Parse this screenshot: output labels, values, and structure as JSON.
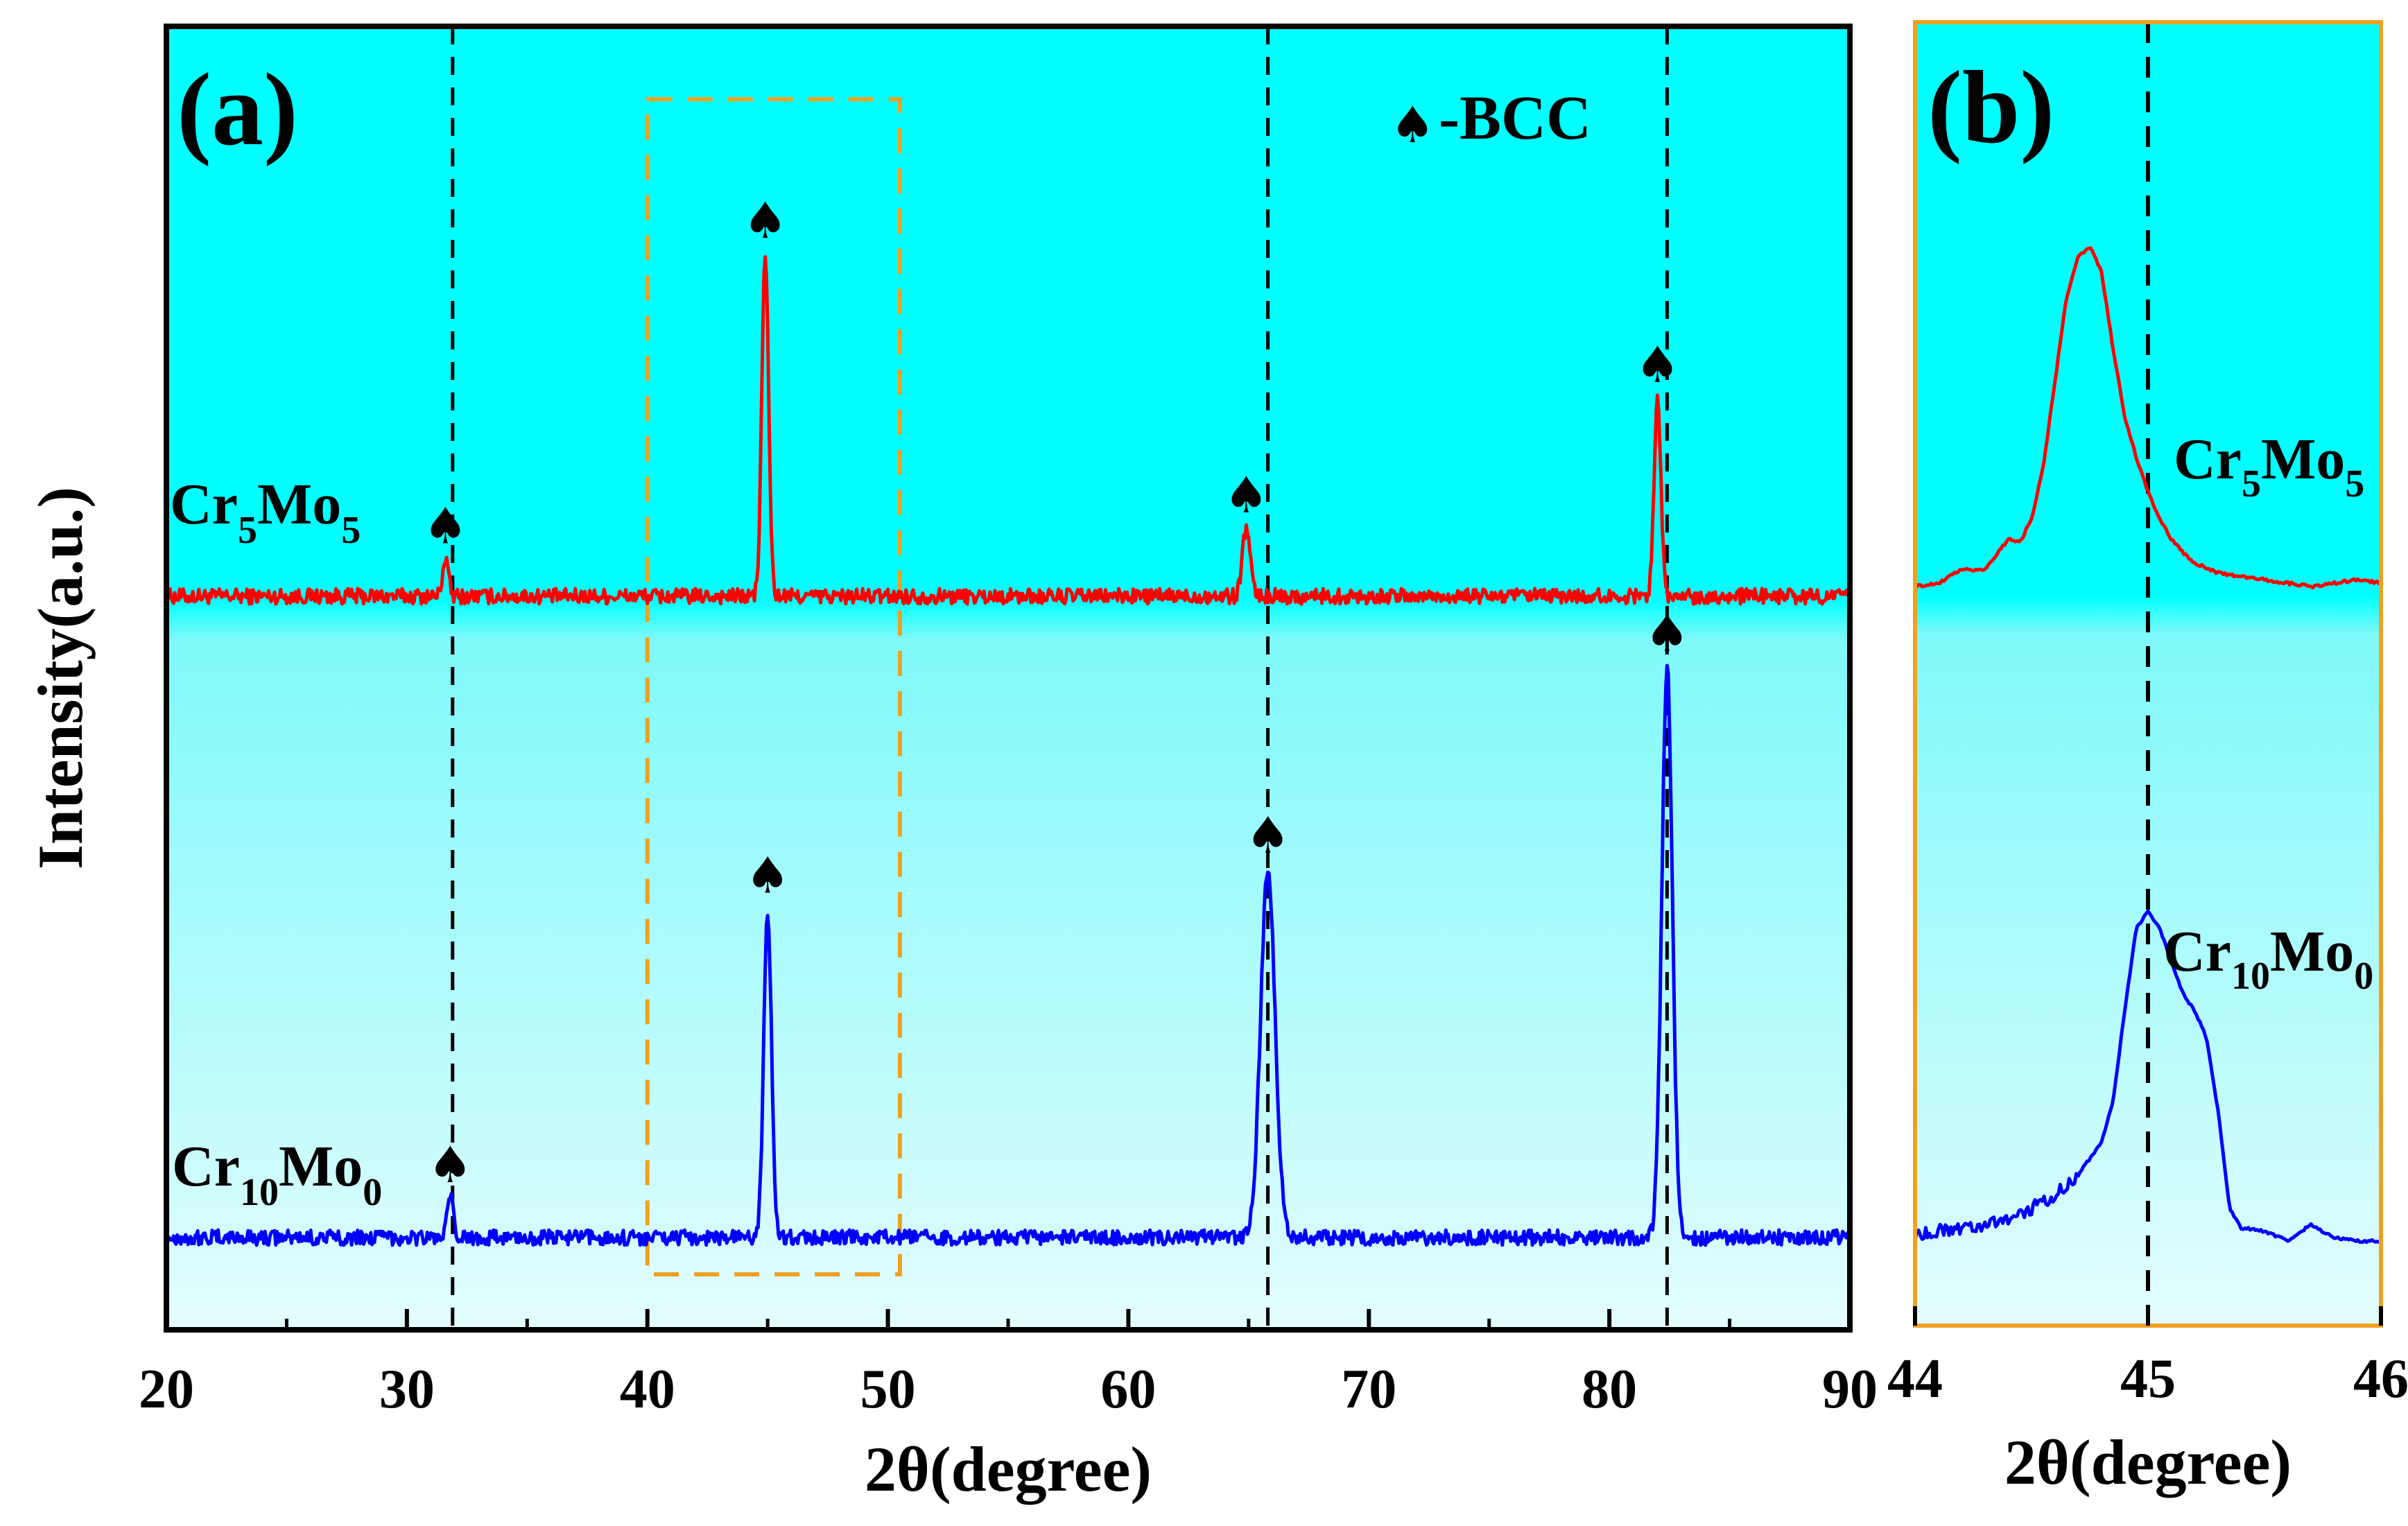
{
  "chart_data": [
    {
      "panel": "(a)",
      "type": "line",
      "xlabel": "2θ(degree)",
      "ylabel": "Intensity(a.u.)",
      "xlim": [
        20,
        90
      ],
      "xticks": [
        "20",
        "30",
        "40",
        "50",
        "60",
        "70",
        "80",
        "90"
      ],
      "xtick_values": [
        20,
        30,
        40,
        50,
        60,
        70,
        80,
        90
      ],
      "legend": {
        "symbol": "♠",
        "text": "-BCC",
        "placement": "top-right"
      },
      "reference_lines_x": [
        31.9,
        65.8,
        82.4
      ],
      "highlight_box_x": [
        40,
        50.5
      ],
      "series": [
        {
          "name": "Cr5Mo5",
          "label_main": "Cr",
          "label_sub1": "5",
          "label_mid": "Mo",
          "label_sub2": "5",
          "color": "#ff0000",
          "baseline": 0,
          "peaks": [
            {
              "x": 31.6,
              "height": 0.11,
              "width": 0.12
            },
            {
              "x": 44.9,
              "height": 1.0,
              "width": 0.14
            },
            {
              "x": 64.9,
              "height": 0.2,
              "width": 0.16
            },
            {
              "x": 82.0,
              "height": 0.58,
              "width": 0.14
            }
          ],
          "markers_x": [
            31.6,
            44.9,
            64.9,
            82.0
          ]
        },
        {
          "name": "Cr10Mo0",
          "label_main": "Cr",
          "label_sub1": "10",
          "label_mid": "Mo",
          "label_sub2": "0",
          "color": "#0000ff",
          "baseline": 0,
          "peaks": [
            {
              "x": 31.8,
              "height": 0.12,
              "width": 0.12
            },
            {
              "x": 45.0,
              "height": 0.98,
              "width": 0.16
            },
            {
              "x": 65.8,
              "height": 1.1,
              "width": 0.3
            },
            {
              "x": 82.4,
              "height": 1.7,
              "width": 0.22
            }
          ],
          "markers_x": [
            31.8,
            45.0,
            65.8,
            82.4
          ]
        }
      ]
    },
    {
      "panel": "(b)",
      "type": "line",
      "xlabel": "2θ(degree)",
      "xlim": [
        44,
        46
      ],
      "xticks": [
        "44",
        "45",
        "46"
      ],
      "xtick_values": [
        44,
        45,
        46
      ],
      "reference_lines_x": [
        45.0
      ],
      "series": [
        {
          "name": "Cr5Mo5",
          "label_main": "Cr",
          "label_sub1": "5",
          "label_mid": "Mo",
          "label_sub2": "5",
          "color": "#ff0000",
          "x": [
            44.0,
            44.1,
            44.2,
            44.3,
            44.4,
            44.45,
            44.5,
            44.55,
            44.6,
            44.65,
            44.7,
            44.75,
            44.8,
            44.85,
            44.9,
            44.95,
            45.0,
            45.05,
            45.1,
            45.15,
            45.2,
            45.3,
            45.4,
            45.5,
            45.6,
            45.7,
            45.8,
            45.9,
            46.0
          ],
          "y": [
            0.0,
            0.01,
            0.05,
            0.05,
            0.14,
            0.13,
            0.2,
            0.35,
            0.6,
            0.85,
            0.97,
            1.0,
            0.93,
            0.7,
            0.5,
            0.38,
            0.28,
            0.2,
            0.14,
            0.1,
            0.07,
            0.04,
            0.03,
            0.02,
            0.01,
            0.0,
            0.01,
            0.02,
            0.01
          ]
        },
        {
          "name": "Cr10Mo0",
          "label_main": "Cr",
          "label_sub1": "10",
          "label_mid": "Mo",
          "label_sub2": "0",
          "color": "#0000ff",
          "x": [
            44.0,
            44.1,
            44.2,
            44.3,
            44.4,
            44.5,
            44.6,
            44.7,
            44.8,
            44.85,
            44.9,
            44.95,
            45.0,
            45.05,
            45.1,
            45.15,
            45.2,
            45.25,
            45.3,
            45.35,
            45.4,
            45.5,
            45.6,
            45.7,
            45.8,
            45.9,
            46.0
          ],
          "y": [
            0.02,
            0.03,
            0.04,
            0.05,
            0.07,
            0.1,
            0.14,
            0.2,
            0.3,
            0.42,
            0.7,
            0.95,
            1.0,
            0.95,
            0.85,
            0.75,
            0.7,
            0.62,
            0.4,
            0.1,
            0.04,
            0.03,
            0.0,
            0.05,
            0.01,
            0.0,
            0.0
          ]
        }
      ]
    }
  ]
}
